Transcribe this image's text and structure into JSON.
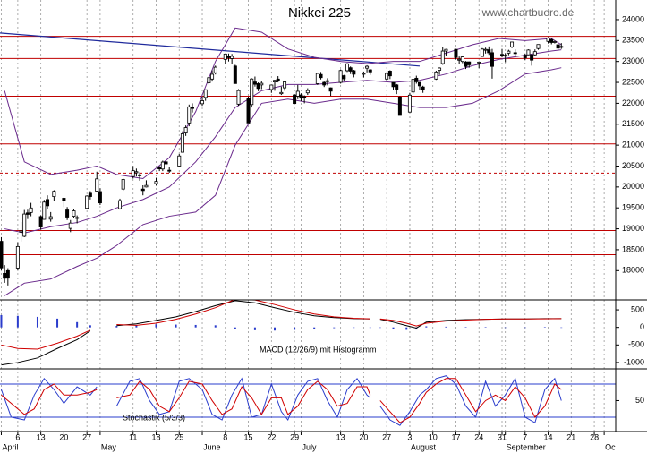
{
  "chart_data": [
    {
      "type": "candlestick",
      "title": "Nikkei 225",
      "source": "www.chartbuero.de",
      "x": [
        1,
        2,
        3,
        6,
        7,
        8,
        9,
        10,
        13,
        14,
        15,
        16,
        17,
        20,
        21,
        22,
        23,
        24,
        27,
        28,
        30,
        31,
        37,
        38,
        41,
        42,
        43,
        44,
        45,
        48,
        49,
        50,
        51,
        52,
        55,
        56,
        57,
        58,
        59,
        62,
        63,
        64,
        65,
        66,
        69,
        70,
        71,
        72,
        73,
        76,
        77,
        78,
        79,
        80,
        83,
        84,
        85,
        86,
        87,
        90,
        91,
        92,
        93,
        94,
        97,
        98,
        99,
        100,
        101,
        104,
        105,
        106,
        107,
        108,
        111,
        112,
        113,
        118,
        119,
        120,
        121,
        122,
        125,
        126,
        127,
        128,
        129,
        133,
        134,
        135,
        136,
        139,
        140,
        141,
        142,
        143,
        146,
        147,
        148,
        149,
        150,
        153,
        154,
        155,
        156,
        157,
        160,
        161,
        162,
        163,
        164,
        167,
        168,
        169,
        170,
        171
      ],
      "open": [
        18700,
        17934,
        18000,
        18061,
        18920,
        18820,
        19380,
        19390,
        19292,
        19226,
        19700,
        19230,
        19770,
        19730,
        19450,
        19010,
        19300,
        19270,
        19490,
        19850,
        19900,
        19890,
        19480,
        19950,
        20250,
        20340,
        20290,
        19950,
        20000,
        20080,
        20470,
        20430,
        20600,
        20400,
        20500,
        20830,
        21290,
        21530,
        21910,
        21990,
        22140,
        22490,
        22580,
        22730,
        23050,
        23120,
        23070,
        22890,
        21980,
        22110,
        21970,
        22510,
        22470,
        22440,
        22330,
        22510,
        22580,
        22230,
        22370,
        22200,
        22170,
        22200,
        22160,
        22250,
        22470,
        22690,
        22500,
        22540,
        22370,
        22500,
        22660,
        22780,
        22850,
        22780,
        22710,
        22840,
        22800,
        22580,
        22770,
        22500,
        22440,
        22150,
        21790,
        22270,
        22600,
        22500,
        22390,
        22580,
        22790,
        22950,
        23250,
        23290,
        23040,
        23000,
        22990,
        22990,
        22980,
        23120,
        23280,
        23280,
        23210,
        23170,
        23150,
        23200,
        23350,
        23210,
        23150,
        23160,
        23160,
        23160,
        23310,
        23480,
        23520,
        23470,
        23400,
        23360
      ],
      "high": [
        18800,
        18132,
        18059,
        18676,
        19162,
        19450,
        19456,
        19620,
        19320,
        19691,
        19800,
        19400,
        19923,
        19750,
        19520,
        19210,
        19470,
        19320,
        19800,
        19900,
        20365,
        19970,
        19720,
        20200,
        20500,
        20440,
        20350,
        20040,
        20160,
        20220,
        20500,
        20630,
        20640,
        20480,
        20790,
        21330,
        21470,
        21970,
        22000,
        22160,
        22330,
        22640,
        22790,
        22900,
        23190,
        23190,
        23180,
        22920,
        22340,
        22160,
        22600,
        22640,
        22500,
        22530,
        22450,
        22560,
        22650,
        22400,
        22530,
        22220,
        22440,
        22240,
        22190,
        22360,
        22730,
        22750,
        22520,
        22600,
        22380,
        22810,
        22680,
        22960,
        22880,
        22800,
        22760,
        22910,
        22820,
        22730,
        22790,
        22510,
        22460,
        22170,
        22250,
        22580,
        22660,
        22510,
        22420,
        22780,
        22860,
        23340,
        23300,
        23300,
        23120,
        23140,
        23010,
        23000,
        23000,
        23320,
        23330,
        23360,
        23300,
        23300,
        23200,
        23280,
        23470,
        23290,
        23190,
        23290,
        23180,
        23290,
        23410,
        23580,
        23560,
        23500,
        23420,
        23440
      ],
      "low": [
        18000,
        17708,
        17646,
        18000,
        18695,
        18800,
        19234,
        19300,
        18980,
        19220,
        19470,
        19170,
        19660,
        19520,
        19210,
        18920,
        19250,
        19130,
        19470,
        19700,
        19880,
        19570,
        19460,
        19910,
        20200,
        20250,
        20150,
        19800,
        19990,
        20030,
        20380,
        20380,
        20460,
        20340,
        20470,
        20830,
        21220,
        21450,
        21780,
        21940,
        22060,
        22450,
        22520,
        22690,
        22930,
        23000,
        22950,
        22470,
        21940,
        21530,
        21900,
        22400,
        22290,
        22340,
        22250,
        22300,
        22500,
        22200,
        22300,
        21990,
        22100,
        22050,
        22000,
        22200,
        22440,
        22570,
        22390,
        22430,
        22180,
        22470,
        22520,
        22750,
        22700,
        22620,
        22620,
        22740,
        22680,
        22530,
        22580,
        22330,
        22220,
        21710,
        21780,
        22230,
        22470,
        22320,
        22250,
        22560,
        22680,
        22920,
        23140,
        23050,
        22950,
        22960,
        22820,
        22850,
        22840,
        23110,
        23190,
        23160,
        22590,
        23100,
        22980,
        23150,
        23320,
        23100,
        23030,
        23150,
        22900,
        23140,
        23280,
        23430,
        23410,
        23430,
        23260,
        23300
      ],
      "close": [
        18065,
        17818,
        17820,
        18576,
        18950,
        19353,
        19345,
        19498,
        19043,
        19638,
        19550,
        19290,
        19897,
        19669,
        19280,
        19137,
        19429,
        19262,
        19783,
        19771,
        20193,
        19619,
        19674,
        20179,
        20390,
        20366,
        20267,
        19914,
        20037,
        20133,
        20433,
        20595,
        20552,
        20388,
        20741,
        21271,
        21419,
        21916,
        21877,
        22062,
        22325,
        22613,
        22695,
        22863,
        23178,
        23091,
        23124,
        22472,
        22305,
        21530,
        22582,
        22455,
        22355,
        22478,
        22437,
        22549,
        22534,
        22259,
        22512,
        21995,
        22288,
        22122,
        22145,
        22306,
        22714,
        22614,
        22438,
        22529,
        22291,
        22784,
        22587,
        22945,
        22770,
        22696,
        22717,
        22884,
        22751,
        22715,
        22657,
        22397,
        22339,
        21710,
        22195,
        22573,
        22514,
        22418,
        22329,
        22750,
        22843,
        23249,
        23289,
        23096,
        23051,
        23110,
        22880,
        22920,
        22985,
        23296,
        23290,
        23208,
        22882,
        23139,
        23138,
        23247,
        23465,
        23205,
        23089,
        23274,
        23032,
        23235,
        23406,
        23559,
        23454,
        23475,
        23319,
        23360
      ],
      "up_color": "#ffffff",
      "down_color": "#000000",
      "bands_x": [
        2,
        8,
        16,
        24,
        30,
        36,
        44,
        52,
        60,
        66,
        72,
        80,
        88,
        96,
        104,
        112,
        120,
        128,
        136,
        144,
        152,
        160,
        168,
        171
      ],
      "bands": [
        {
          "values": [
            22300,
            20600,
            20300,
            20400,
            20500,
            20300,
            20200,
            20700,
            21800,
            23000,
            23800,
            23700,
            23300,
            23100,
            23000,
            22950,
            23000,
            23000,
            23200,
            23400,
            23550,
            23500,
            23550,
            23400
          ]
        },
        {
          "values": [
            19000,
            18900,
            19050,
            19150,
            19300,
            19500,
            19700,
            20000,
            20600,
            21200,
            21900,
            22300,
            22450,
            22450,
            22500,
            22550,
            22500,
            22550,
            22700,
            22900,
            23050,
            23150,
            23250,
            23280
          ]
        },
        {
          "values": [
            17400,
            17700,
            17800,
            18100,
            18300,
            18600,
            19100,
            19300,
            19400,
            19800,
            21000,
            22000,
            22100,
            22000,
            22100,
            22100,
            22000,
            21900,
            21900,
            22000,
            22300,
            22700,
            22800,
            22850
          ]
        }
      ],
      "bands_color": "#6a2a8c",
      "levels": [
        23600,
        23070,
        22170,
        21030,
        18960,
        18380
      ],
      "dashed_levels": [
        20330
      ],
      "level_color": "#c00000",
      "trendline": {
        "x": [
          0.6,
          128
        ],
        "values": [
          23680,
          22890
        ],
        "color": "#1f2a9c"
      },
      "xlim": [
        0.6,
        187.5
      ],
      "ylim": [
        17300,
        24470
      ],
      "yticks": [
        18000,
        18500,
        19000,
        19500,
        20000,
        20500,
        21000,
        21500,
        22000,
        22500,
        23000,
        23500,
        24000
      ]
    },
    {
      "type": "macd",
      "label": "MACD (12/26/9) mit Histogramm",
      "x": [
        1,
        6,
        12,
        18,
        24,
        28,
        32,
        36,
        42,
        48,
        54,
        60,
        66,
        72,
        78,
        84,
        90,
        96,
        102,
        108,
        113,
        114.5,
        116,
        120,
        124,
        127,
        130,
        136,
        142,
        148,
        154,
        160,
        166,
        171
      ],
      "series": [
        {
          "color": "#000000",
          "values": [
            -1070,
            -1000,
            -870,
            -600,
            -350,
            -100,
            null,
            50,
            100,
            200,
            300,
            450,
            620,
            760,
            700,
            560,
            430,
            330,
            280,
            250,
            240,
            null,
            230,
            150,
            50,
            -20,
            150,
            200,
            220,
            230,
            240,
            240,
            250,
            250
          ]
        },
        {
          "color": "#d00000",
          "values": [
            -500,
            -600,
            -620,
            -450,
            -250,
            -80,
            null,
            80,
            60,
            120,
            230,
            380,
            560,
            800,
            780,
            650,
            500,
            380,
            300,
            260,
            245,
            null,
            240,
            200,
            120,
            40,
            120,
            180,
            210,
            230,
            240,
            240,
            245,
            250
          ]
        }
      ],
      "histogram": {
        "color": "#2a3ccc",
        "values": [
          350,
          330,
          300,
          250,
          150,
          60,
          null,
          40,
          60,
          90,
          80,
          70,
          60,
          -40,
          -80,
          -90,
          -70,
          -50,
          -20,
          -10,
          -5,
          null,
          -10,
          -50,
          -70,
          -60,
          30,
          20,
          10,
          10,
          0,
          0,
          5,
          0
        ]
      },
      "xlim": [
        0.6,
        187.5
      ],
      "ylim": [
        -1180,
        782
      ],
      "yticks": [
        500,
        0,
        -500,
        -1000
      ]
    },
    {
      "type": "stochastic",
      "label": "Stochastik (5/3/3)",
      "x": [
        1,
        4,
        8,
        11,
        14,
        17,
        20,
        24,
        28,
        30,
        32,
        36,
        40,
        43,
        46,
        49,
        52,
        55,
        58,
        62,
        65,
        68,
        71,
        74,
        77,
        80,
        83,
        86,
        88,
        91,
        94,
        97,
        100,
        103,
        106,
        109,
        112,
        113,
        114.5,
        116,
        119,
        122,
        125,
        128,
        130,
        133,
        136,
        139,
        142,
        145,
        148,
        151,
        154,
        157,
        160,
        163,
        166,
        169,
        171
      ],
      "series": [
        {
          "color": "#2a3ccc",
          "values": [
            70,
            20,
            15,
            60,
            90,
            70,
            45,
            75,
            60,
            75,
            null,
            40,
            85,
            90,
            50,
            25,
            30,
            85,
            90,
            70,
            25,
            15,
            60,
            90,
            20,
            25,
            80,
            30,
            15,
            60,
            85,
            90,
            50,
            20,
            70,
            90,
            60,
            55,
            null,
            40,
            15,
            5,
            30,
            60,
            70,
            90,
            95,
            80,
            40,
            20,
            85,
            40,
            60,
            90,
            20,
            10,
            70,
            90,
            50
          ]
        },
        {
          "color": "#d00000",
          "values": [
            60,
            45,
            25,
            35,
            70,
            80,
            60,
            60,
            65,
            70,
            null,
            55,
            60,
            85,
            70,
            40,
            30,
            55,
            85,
            80,
            50,
            25,
            35,
            75,
            55,
            25,
            55,
            55,
            25,
            40,
            70,
            85,
            70,
            40,
            45,
            75,
            75,
            60,
            null,
            50,
            30,
            10,
            20,
            45,
            65,
            80,
            90,
            90,
            60,
            30,
            50,
            60,
            50,
            75,
            55,
            20,
            40,
            80,
            70
          ]
        }
      ],
      "levels": [
        20,
        80
      ],
      "level_color": "#2a3ccc",
      "xlim": [
        0.6,
        187.5
      ],
      "ylim": [
        -6,
        107.5
      ],
      "yticks": [
        50
      ],
      "xticks": [
        6,
        13,
        20,
        27,
        {
          "value": 41,
          "label": "11"
        },
        {
          "value": 48,
          "label": "18"
        },
        {
          "value": 55,
          "label": "25"
        },
        {
          "value": 69,
          "label": "8"
        },
        {
          "value": 76,
          "label": "15"
        },
        {
          "value": 83,
          "label": "22"
        },
        {
          "value": 90,
          "label": "29"
        },
        {
          "value": 104,
          "label": "13"
        },
        {
          "value": 111,
          "label": "20"
        },
        {
          "value": 118,
          "label": "27"
        },
        {
          "value": 125,
          "label": "3"
        },
        {
          "value": 132,
          "label": "10"
        },
        {
          "value": 139,
          "label": "17"
        },
        {
          "value": 146,
          "label": "24"
        },
        {
          "value": 153,
          "label": "31"
        },
        {
          "value": 160,
          "label": "7"
        },
        {
          "value": 167,
          "label": "14"
        },
        {
          "value": 174,
          "label": "21"
        },
        {
          "value": 181,
          "label": "28"
        }
      ],
      "xmonths": [
        {
          "value": 1,
          "label": "April"
        },
        {
          "value": 31,
          "label": "May"
        },
        {
          "value": 62,
          "label": "June"
        },
        {
          "value": 92,
          "label": "July"
        },
        {
          "value": 125,
          "label": "August"
        },
        {
          "value": 154,
          "label": "September"
        },
        {
          "value": 184,
          "label": "Oc"
        }
      ]
    }
  ]
}
